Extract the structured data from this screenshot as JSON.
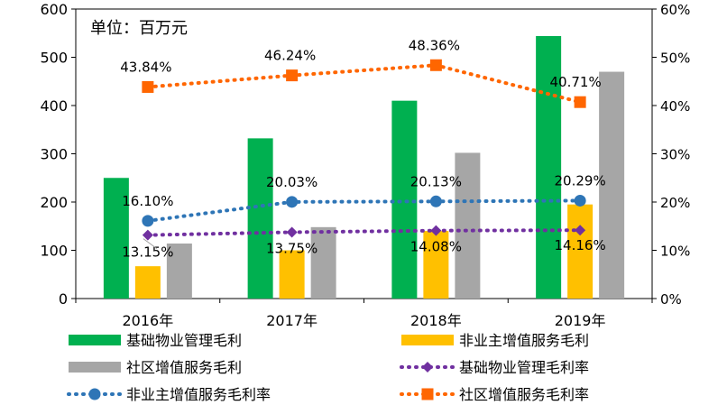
{
  "chart_data": {
    "type": "bar+line",
    "unit_label": "单位：百万元",
    "categories": [
      "2016年",
      "2017年",
      "2018年",
      "2019年"
    ],
    "left_axis": {
      "min": 0,
      "max": 600,
      "step": 100,
      "ticks": [
        "0",
        "100",
        "200",
        "300",
        "400",
        "500",
        "600"
      ]
    },
    "right_axis": {
      "min": 0,
      "max": 0.6,
      "step": 0.1,
      "ticks": [
        "0%",
        "10%",
        "20%",
        "30%",
        "40%",
        "50%",
        "60%"
      ]
    },
    "bar_series": [
      {
        "name": "基础物业管理毛利",
        "color": "#00b050",
        "values": [
          250,
          332,
          410,
          544
        ]
      },
      {
        "name": "非业主增值服务毛利",
        "color": "#ffc000",
        "values": [
          67,
          100,
          140,
          195
        ]
      },
      {
        "name": "社区增值服务毛利",
        "color": "#a6a6a6",
        "values": [
          114,
          148,
          302,
          470
        ]
      }
    ],
    "line_series": [
      {
        "name": "基础物业管理毛利率",
        "color": "#7030a0",
        "marker": "diamond",
        "values": [
          0.1315,
          0.1375,
          0.1408,
          0.1416
        ],
        "labels": [
          "13.15%",
          "13.75%",
          "14.08%",
          "14.16%"
        ]
      },
      {
        "name": "非业主增值服务毛利率",
        "color": "#2e75b6",
        "marker": "circle",
        "values": [
          0.161,
          0.2003,
          0.2013,
          0.2029
        ],
        "labels": [
          "16.10%",
          "20.03%",
          "20.13%",
          "20.29%"
        ]
      },
      {
        "name": "社区增值服务毛利率",
        "color": "#ff6600",
        "marker": "square",
        "values": [
          0.4384,
          0.4624,
          0.4836,
          0.4071
        ],
        "labels": [
          "43.84%",
          "46.24%",
          "48.36%",
          "40.71%"
        ]
      }
    ]
  }
}
